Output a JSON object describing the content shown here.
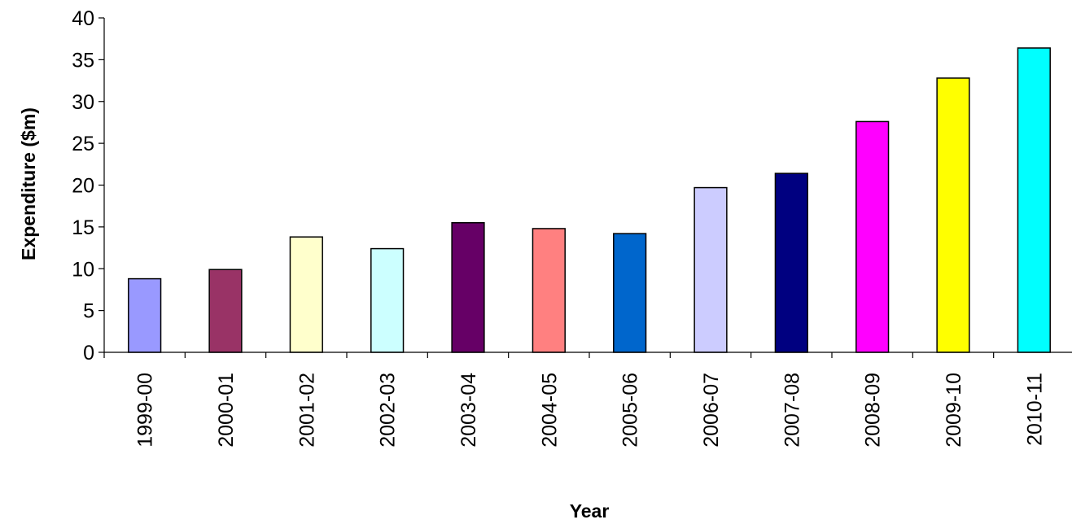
{
  "chart_data": {
    "type": "bar",
    "title": "",
    "xlabel": "Year",
    "ylabel": "Expenditure ($m)",
    "ylim": [
      0,
      40
    ],
    "yticks": [
      0,
      5,
      10,
      15,
      20,
      25,
      30,
      35,
      40
    ],
    "grid": false,
    "legend": "none",
    "categories": [
      "1999-00",
      "2000-01",
      "2001-02",
      "2002-03",
      "2003-04",
      "2004-05",
      "2005-06",
      "2006-07",
      "2007-08",
      "2008-09",
      "2009-10",
      "2010-11"
    ],
    "values": [
      8.8,
      9.9,
      13.8,
      12.4,
      15.5,
      14.8,
      14.2,
      19.7,
      21.4,
      27.6,
      32.8,
      36.4
    ],
    "colors": [
      "#9999ff",
      "#993366",
      "#ffffcc",
      "#ccffff",
      "#660066",
      "#ff8080",
      "#0066cc",
      "#ccccff",
      "#000080",
      "#ff00ff",
      "#ffff00",
      "#00ffff"
    ]
  }
}
